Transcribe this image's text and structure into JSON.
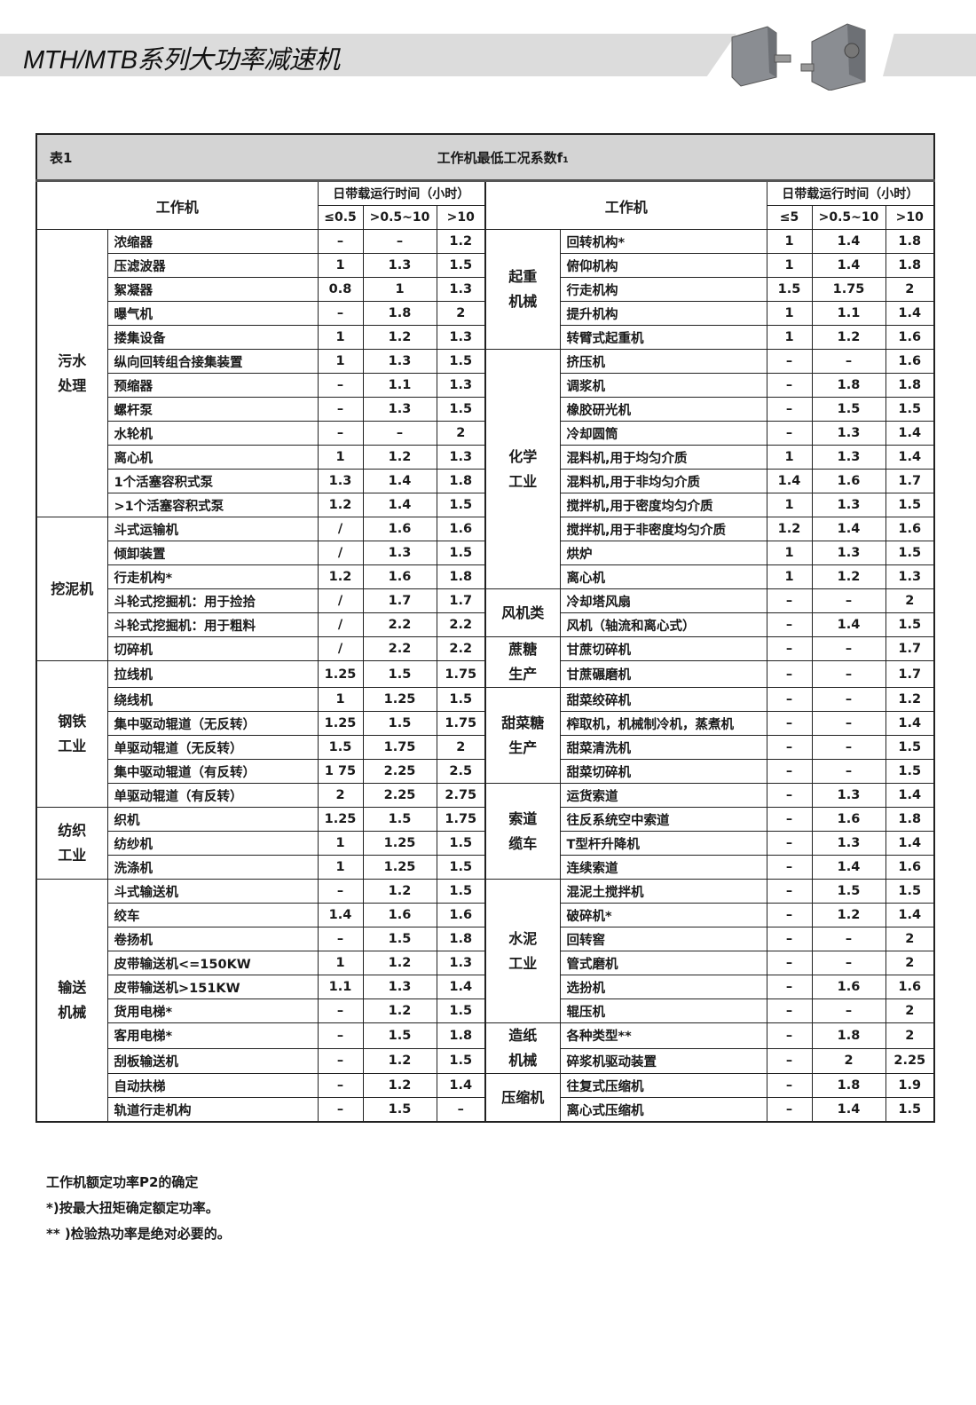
{
  "header": {
    "title": "MTH/MTB系列大功率减速机",
    "product_image": "gear-reducer-photos"
  },
  "table": {
    "label": "表1",
    "caption": "工作机最低工况系数f₁",
    "machine_header": "工作机",
    "hours_header": "日带载运行时间（小时）",
    "left_cols": [
      "≤0.5",
      ">0.5~10",
      ">10"
    ],
    "right_cols": [
      "≤5",
      ">0.5~10",
      ">10"
    ],
    "left_groups": [
      {
        "category": "污水处理",
        "rows": [
          [
            "浓缩器",
            "–",
            "–",
            "1.2"
          ],
          [
            "压滤波器",
            "1",
            "1.3",
            "1.5"
          ],
          [
            "絮凝器",
            "0.8",
            "1",
            "1.3"
          ],
          [
            "曝气机",
            "–",
            "1.8",
            "2"
          ],
          [
            "搂集设备",
            "1",
            "1.2",
            "1.3"
          ],
          [
            "纵向回转组合接集装置",
            "1",
            "1.3",
            "1.5"
          ],
          [
            "预缩器",
            "–",
            "1.1",
            "1.3"
          ],
          [
            "螺杆泵",
            "–",
            "1.3",
            "1.5"
          ],
          [
            "水轮机",
            "–",
            "–",
            "2"
          ],
          [
            "离心机",
            "1",
            "1.2",
            "1.3"
          ],
          [
            "1个活塞容积式泵",
            "1.3",
            "1.4",
            "1.8"
          ],
          [
            ">1个活塞容积式泵",
            "1.2",
            "1.4",
            "1.5"
          ]
        ]
      },
      {
        "category": "挖泥机",
        "rows": [
          [
            "斗式运输机",
            "/",
            "1.6",
            "1.6"
          ],
          [
            "倾卸装置",
            "/",
            "1.3",
            "1.5"
          ],
          [
            "行走机构*",
            "1.2",
            "1.6",
            "1.8"
          ],
          [
            "斗轮式挖掘机：用于捡拾",
            "/",
            "1.7",
            "1.7"
          ],
          [
            "斗轮式挖掘机：用于粗料",
            "/",
            "2.2",
            "2.2"
          ],
          [
            "切碎机",
            "/",
            "2.2",
            "2.2"
          ]
        ]
      },
      {
        "category": "钢铁工业",
        "rows": [
          [
            "拉线机",
            "1.25",
            "1.5",
            "1.75"
          ],
          [
            "绕线机",
            "1",
            "1.25",
            "1.5"
          ],
          [
            "集中驱动辊道（无反转）",
            "1.25",
            "1.5",
            "1.75"
          ],
          [
            "单驱动辊道（无反转）",
            "1.5",
            "1.75",
            "2"
          ],
          [
            "集中驱动辊道（有反转）",
            "1 75",
            "2.25",
            "2.5"
          ],
          [
            "单驱动辊道（有反转）",
            "2",
            "2.25",
            "2.75"
          ]
        ]
      },
      {
        "category": "纺织工业",
        "rows": [
          [
            "织机",
            "1.25",
            "1.5",
            "1.75"
          ],
          [
            "纺纱机",
            "1",
            "1.25",
            "1.5"
          ],
          [
            "洗涤机",
            "1",
            "1.25",
            "1.5"
          ]
        ]
      },
      {
        "category": "输送机械",
        "rows": [
          [
            "斗式输送机",
            "–",
            "1.2",
            "1.5"
          ],
          [
            "绞车",
            "1.4",
            "1.6",
            "1.6"
          ],
          [
            "卷扬机",
            "–",
            "1.5",
            "1.8"
          ],
          [
            "皮带输送机<=150KW",
            "1",
            "1.2",
            "1.3"
          ],
          [
            "皮带输送机>151KW",
            "1.1",
            "1.3",
            "1.4"
          ],
          [
            "货用电梯*",
            "–",
            "1.2",
            "1.5"
          ],
          [
            "客用电梯*",
            "–",
            "1.5",
            "1.8"
          ],
          [
            "刮板输送机",
            "–",
            "1.2",
            "1.5"
          ],
          [
            "自动扶梯",
            "–",
            "1.2",
            "1.4"
          ],
          [
            "轨道行走机构",
            "–",
            "1.5",
            "–"
          ]
        ]
      }
    ],
    "right_groups": [
      {
        "category": "起重机械",
        "rows": [
          [
            "回转机构*",
            "1",
            "1.4",
            "1.8"
          ],
          [
            "俯仰机构",
            "1",
            "1.4",
            "1.8"
          ],
          [
            "行走机构",
            "1.5",
            "1.75",
            "2"
          ],
          [
            "提升机构",
            "1",
            "1.1",
            "1.4"
          ],
          [
            "转臂式起重机",
            "1",
            "1.2",
            "1.6"
          ]
        ]
      },
      {
        "category": "化学工业",
        "rows": [
          [
            "挤压机",
            "–",
            "–",
            "1.6"
          ],
          [
            "调浆机",
            "–",
            "1.8",
            "1.8"
          ],
          [
            "橡胶研光机",
            "–",
            "1.5",
            "1.5"
          ],
          [
            "冷却圆筒",
            "–",
            "1.3",
            "1.4"
          ],
          [
            "混料机,用于均匀介质",
            "1",
            "1.3",
            "1.4"
          ],
          [
            "混料机,用于非均匀介质",
            "1.4",
            "1.6",
            "1.7"
          ],
          [
            "搅拌机,用于密度均匀介质",
            "1",
            "1.3",
            "1.5"
          ],
          [
            "搅拌机,用于非密度均匀介质",
            "1.2",
            "1.4",
            "1.6"
          ],
          [
            "烘炉",
            "1",
            "1.3",
            "1.5"
          ],
          [
            "离心机",
            "1",
            "1.2",
            "1.3"
          ]
        ]
      },
      {
        "category": "风机类",
        "rows": [
          [
            "冷却塔风扇",
            "–",
            "–",
            "2"
          ],
          [
            "风机（轴流和离心式）",
            "–",
            "1.4",
            "1.5"
          ]
        ]
      },
      {
        "category": "蔗糖生产",
        "rows": [
          [
            "甘蔗切碎机",
            "–",
            "–",
            "1.7"
          ],
          [
            "甘蔗碾磨机",
            "–",
            "–",
            "1.7"
          ]
        ]
      },
      {
        "category": "甜菜糖生产",
        "rows": [
          [
            "甜菜绞碎机",
            "–",
            "–",
            "1.2"
          ],
          [
            "榨取机，机械制冷机，蒸煮机",
            "–",
            "–",
            "1.4"
          ],
          [
            "甜菜清洗机",
            "–",
            "–",
            "1.5"
          ],
          [
            "甜菜切碎机",
            "–",
            "–",
            "1.5"
          ]
        ]
      },
      {
        "category": "索道缆车",
        "rows": [
          [
            "运货索道",
            "–",
            "1.3",
            "1.4"
          ],
          [
            "往反系统空中索道",
            "–",
            "1.6",
            "1.8"
          ],
          [
            "T型杆升降机",
            "–",
            "1.3",
            "1.4"
          ],
          [
            "连续索道",
            "–",
            "1.4",
            "1.6"
          ]
        ]
      },
      {
        "category": "水泥工业",
        "rows": [
          [
            "混泥土搅拌机",
            "–",
            "1.5",
            "1.5"
          ],
          [
            "破碎机*",
            "–",
            "1.2",
            "1.4"
          ],
          [
            "回转窖",
            "–",
            "–",
            "2"
          ],
          [
            "管式磨机",
            "–",
            "–",
            "2"
          ],
          [
            "选扮机",
            "–",
            "1.6",
            "1.6"
          ],
          [
            "辊压机",
            "–",
            "–",
            "2"
          ]
        ]
      },
      {
        "category": "造纸机械",
        "rows": [
          [
            "各种类型**",
            "–",
            "1.8",
            "2"
          ],
          [
            "碎浆机驱动装置",
            "–",
            "2",
            "2.25"
          ]
        ]
      },
      {
        "category": "压缩机",
        "rows": [
          [
            "往复式压缩机",
            "–",
            "1.8",
            "1.9"
          ],
          [
            "离心式压缩机",
            "–",
            "1.4",
            "1.5"
          ]
        ]
      }
    ]
  },
  "notes": [
    "工作机额定功率P2的确定",
    "*)按最大扭矩确定额定功率。",
    "** )检验热功率是绝对必要的。"
  ]
}
